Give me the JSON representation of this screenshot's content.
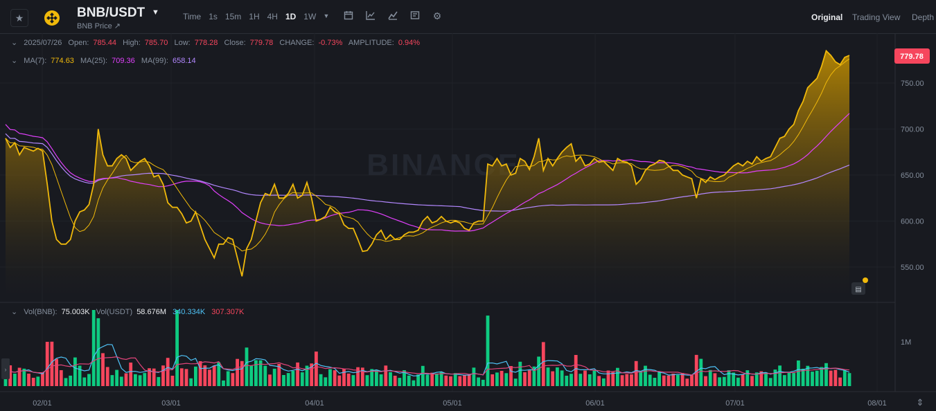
{
  "header": {
    "pair": "BNB/USDT",
    "subtitle": "BNB Price ↗",
    "intervals": [
      "Time",
      "1s",
      "15m",
      "1H",
      "4H",
      "1D",
      "1W"
    ],
    "active_interval": "1D",
    "views": [
      "Original",
      "Trading View",
      "Depth"
    ],
    "active_view": "Original"
  },
  "ohlc": {
    "date": "2025/07/26",
    "open_label": "Open:",
    "open": "785.44",
    "high_label": "High:",
    "high": "785.70",
    "low_label": "Low:",
    "low": "778.28",
    "close_label": "Close:",
    "close": "779.78",
    "change_label": "CHANGE:",
    "change": "-0.73%",
    "amp_label": "AMPLITUDE:",
    "amp": "0.94%"
  },
  "ma": {
    "ma7_label": "MA(7):",
    "ma7": "774.63",
    "ma25_label": "MA(25):",
    "ma25": "709.36",
    "ma99_label": "MA(99):",
    "ma99": "658.14"
  },
  "volume": {
    "vol_bnb_label": "Vol(BNB):",
    "vol_bnb": "75.003K",
    "vol_usdt_label": "Vol(USDT)",
    "vol_usdt": "58.676M",
    "ma1": "340.334K",
    "ma2": "307.307K",
    "axis_label": "1M"
  },
  "watermark": "BINANCE",
  "chart_data": {
    "type": "area",
    "price_ticks": [
      "750.00",
      "700.00",
      "650.00",
      "600.00",
      "550.00"
    ],
    "price_tick_values": [
      750,
      700,
      650,
      600,
      550
    ],
    "current_price": "779.78",
    "x_ticks": [
      "02/01",
      "03/01",
      "04/01",
      "05/01",
      "06/01",
      "07/01",
      "08/01"
    ],
    "close": [
      690,
      680,
      685,
      672,
      680,
      678,
      676,
      679,
      676,
      640,
      600,
      580,
      575,
      575,
      580,
      600,
      610,
      612,
      618,
      640,
      700,
      672,
      660,
      660,
      668,
      672,
      668,
      655,
      660,
      665,
      668,
      660,
      648,
      650,
      640,
      620,
      615,
      615,
      608,
      598,
      600,
      610,
      595,
      580,
      570,
      560,
      575,
      575,
      582,
      580,
      560,
      540,
      570,
      580,
      600,
      620,
      630,
      628,
      640,
      625,
      625,
      630,
      640,
      625,
      628,
      642,
      625,
      600,
      602,
      605,
      615,
      610,
      608,
      596,
      592,
      592,
      580,
      567,
      568,
      575,
      585,
      590,
      580,
      585,
      580,
      580,
      585,
      588,
      588,
      590,
      600,
      605,
      598,
      600,
      605,
      600,
      598,
      600,
      598,
      592,
      590,
      598,
      600,
      600,
      662,
      660,
      668,
      660,
      662,
      650,
      652,
      668,
      665,
      656,
      670,
      690,
      655,
      668,
      660,
      668,
      675,
      680,
      684,
      665,
      670,
      660,
      662,
      668,
      664,
      665,
      660,
      655,
      668,
      665,
      664,
      660,
      640,
      645,
      655,
      660,
      662,
      666,
      665,
      660,
      655,
      655,
      650,
      648,
      646,
      625,
      646,
      642,
      648,
      645,
      648,
      650,
      655,
      660,
      663,
      660,
      665,
      662,
      670,
      665,
      668,
      670,
      680,
      690,
      692,
      700,
      705,
      720,
      730,
      745,
      750,
      755,
      768,
      785,
      780,
      773,
      770,
      778,
      780
    ]
  }
}
